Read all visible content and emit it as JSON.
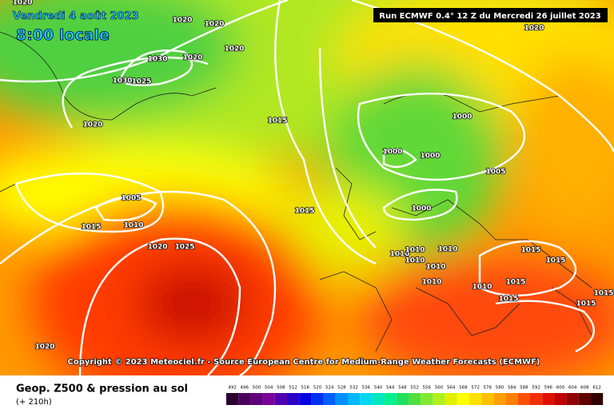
{
  "header": {
    "date": "Vendredi 4 août 2023",
    "time": "8:00 locale"
  },
  "run_info": "Run ECMWF 0.4° 12 Z du Mercredi 26 juillet 2023",
  "isobar_labels": [
    1020,
    1020,
    1020,
    1030,
    1020,
    1020,
    1030,
    1025,
    1020,
    1015,
    1000,
    1000,
    1000,
    1005,
    1005,
    1015,
    1010,
    1015,
    1000,
    1020,
    1025,
    1010,
    1010,
    1010,
    1010,
    1010,
    1010,
    1010,
    1015,
    1015,
    1015,
    1015,
    1015,
    1015,
    1020,
    1020
  ],
  "copyright": "Copyright © 2023 Meteociel.fr - Source European Centre for Medium-Range Weather Forecasts (ECMWF)",
  "footer": {
    "title": "Geop. Z500 & pression au sol",
    "lead": "(+ 210h)"
  },
  "legend": {
    "values": [
      492,
      496,
      500,
      504,
      508,
      512,
      516,
      520,
      524,
      528,
      532,
      536,
      540,
      544,
      548,
      552,
      556,
      560,
      564,
      568,
      572,
      576,
      580,
      584,
      588,
      592,
      596,
      600,
      604,
      608,
      612
    ],
    "colors": [
      "#2a0030",
      "#4a0060",
      "#60007a",
      "#7a0099",
      "#5000b0",
      "#2a00c8",
      "#0000e0",
      "#0030f0",
      "#0060ff",
      "#0090ff",
      "#00b8ff",
      "#00d8f0",
      "#00e8c0",
      "#00f090",
      "#20e060",
      "#50e040",
      "#80e830",
      "#b0f020",
      "#e0f000",
      "#ffff00",
      "#ffe000",
      "#ffc000",
      "#ffa000",
      "#ff8000",
      "#ff5000",
      "#f03000",
      "#e01000",
      "#c00000",
      "#900000",
      "#600000",
      "#300000"
    ]
  }
}
